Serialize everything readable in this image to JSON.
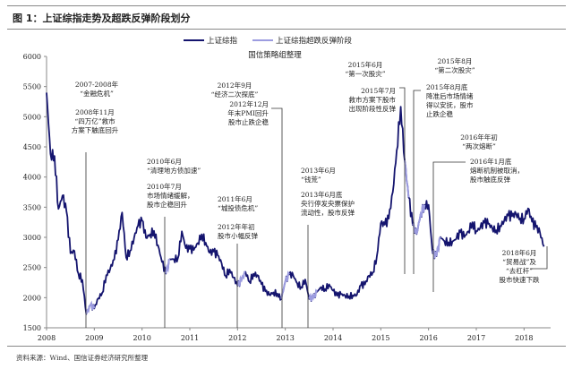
{
  "title": "图 1：上证综指走势及超跌反弹阶段划分",
  "source": "资料来源：Wind、国信证券经济研究所整理",
  "chart_data": {
    "type": "line",
    "subtitle": "国信策略组整理",
    "xlim": [
      "2008-01",
      "2018-06"
    ],
    "ylim": [
      1500,
      6000
    ],
    "x_ticks": [
      "2008",
      "2009",
      "2010",
      "2011",
      "2012",
      "2013",
      "2014",
      "2015",
      "2016",
      "2017",
      "2018"
    ],
    "y_ticks": [
      1500,
      2000,
      2500,
      3000,
      3500,
      4000,
      4500,
      5000,
      5500,
      6000
    ],
    "legend": {
      "placement": "top-center",
      "entries": [
        "上证综指",
        "上证综指超跌反弹阶段"
      ]
    },
    "colors": {
      "index": "#14146e",
      "rebound": "#9c9ce0"
    },
    "grid": false,
    "series": [
      {
        "name": "上证综指",
        "points": [
          [
            "2008-01",
            5400
          ],
          [
            "2008-02",
            4383
          ],
          [
            "2008-03",
            4348
          ],
          [
            "2008-04",
            3472
          ],
          [
            "2008-05",
            3693
          ],
          [
            "2008-06",
            3433
          ],
          [
            "2008-07",
            2736
          ],
          [
            "2008-08",
            2775
          ],
          [
            "2008-09",
            2397
          ],
          [
            "2008-10",
            2293
          ],
          [
            "2008-11",
            1728
          ],
          [
            "2008-12",
            1871
          ],
          [
            "2009-01",
            1821
          ],
          [
            "2009-02",
            1990
          ],
          [
            "2009-03",
            2082
          ],
          [
            "2009-04",
            2373
          ],
          [
            "2009-05",
            2477
          ],
          [
            "2009-06",
            2632
          ],
          [
            "2009-07",
            2959
          ],
          [
            "2009-08",
            3412
          ],
          [
            "2009-09",
            2667
          ],
          [
            "2009-10",
            2779
          ],
          [
            "2009-11",
            2995
          ],
          [
            "2009-12",
            3195
          ],
          [
            "2010-01",
            3277
          ],
          [
            "2010-02",
            2989
          ],
          [
            "2010-03",
            3051
          ],
          [
            "2010-04",
            3109
          ],
          [
            "2010-05",
            2870
          ],
          [
            "2010-06",
            2592
          ],
          [
            "2010-07",
            2398
          ],
          [
            "2010-08",
            2637
          ],
          [
            "2010-09",
            2638
          ],
          [
            "2010-10",
            2655
          ],
          [
            "2010-11",
            3100
          ],
          [
            "2010-12",
            2820
          ],
          [
            "2011-01",
            2808
          ],
          [
            "2011-02",
            2790
          ],
          [
            "2011-03",
            2905
          ],
          [
            "2011-04",
            3050
          ],
          [
            "2011-05",
            2911
          ],
          [
            "2011-06",
            2743
          ],
          [
            "2011-07",
            2762
          ],
          [
            "2011-08",
            2701
          ],
          [
            "2011-09",
            2568
          ],
          [
            "2011-10",
            2359
          ],
          [
            "2011-11",
            2469
          ],
          [
            "2011-12",
            2333
          ],
          [
            "2012-01",
            2199
          ],
          [
            "2012-02",
            2292
          ],
          [
            "2012-03",
            2428
          ],
          [
            "2012-04",
            2262
          ],
          [
            "2012-05",
            2396
          ],
          [
            "2012-06",
            2373
          ],
          [
            "2012-07",
            2225
          ],
          [
            "2012-08",
            2103
          ],
          [
            "2012-09",
            2047
          ],
          [
            "2012-10",
            2086
          ],
          [
            "2012-11",
            2068
          ],
          [
            "2012-12",
            1980
          ],
          [
            "2013-01",
            2269
          ],
          [
            "2013-02",
            2385
          ],
          [
            "2013-03",
            2365
          ],
          [
            "2013-04",
            2236
          ],
          [
            "2013-05",
            2177
          ],
          [
            "2013-06",
            2300
          ],
          [
            "2013-07",
            1979
          ],
          [
            "2013-08",
            1994
          ],
          [
            "2013-09",
            2098
          ],
          [
            "2013-10",
            2175
          ],
          [
            "2013-11",
            2141
          ],
          [
            "2013-12",
            2220
          ],
          [
            "2014-01",
            2116
          ],
          [
            "2014-02",
            2033
          ],
          [
            "2014-03",
            2056
          ],
          [
            "2014-04",
            2033
          ],
          [
            "2014-05",
            2026
          ],
          [
            "2014-06",
            2039
          ],
          [
            "2014-07",
            2048
          ],
          [
            "2014-08",
            2202
          ],
          [
            "2014-09",
            2217
          ],
          [
            "2014-10",
            2364
          ],
          [
            "2014-11",
            2420
          ],
          [
            "2014-12",
            2683
          ],
          [
            "2015-01",
            3235
          ],
          [
            "2015-02",
            3210
          ],
          [
            "2015-03",
            3310
          ],
          [
            "2015-04",
            3748
          ],
          [
            "2015-05",
            4442
          ],
          [
            "2015-06",
            5166
          ],
          [
            "2015-07",
            4277
          ],
          [
            "2015-08",
            3664
          ],
          [
            "2015-09",
            3206
          ],
          [
            "2015-10",
            3053
          ],
          [
            "2015-11",
            3383
          ],
          [
            "2015-12",
            3539
          ],
          [
            "2016-01",
            3539
          ],
          [
            "2016-02",
            2738
          ],
          [
            "2016-03",
            2688
          ],
          [
            "2016-04",
            3004
          ],
          [
            "2016-05",
            2938
          ],
          [
            "2016-06",
            2917
          ],
          [
            "2016-07",
            2930
          ],
          [
            "2016-08",
            2979
          ],
          [
            "2016-09",
            3085
          ],
          [
            "2016-10",
            3005
          ],
          [
            "2016-11",
            3100
          ],
          [
            "2016-12",
            3250
          ],
          [
            "2017-01",
            3104
          ],
          [
            "2017-02",
            3159
          ],
          [
            "2017-03",
            3242
          ],
          [
            "2017-04",
            3223
          ],
          [
            "2017-05",
            3155
          ],
          [
            "2017-06",
            3117
          ],
          [
            "2017-07",
            3192
          ],
          [
            "2017-08",
            3273
          ],
          [
            "2017-09",
            3361
          ],
          [
            "2017-10",
            3349
          ],
          [
            "2017-11",
            3393
          ],
          [
            "2017-12",
            3317
          ],
          [
            "2018-01",
            3307
          ],
          [
            "2018-02",
            3480
          ],
          [
            "2018-03",
            3259
          ],
          [
            "2018-04",
            3169
          ],
          [
            "2018-05",
            3082
          ],
          [
            "2018-06",
            2847
          ]
        ]
      },
      {
        "name": "上证综指超跌反弹阶段",
        "ranges": [
          [
            "2008-11",
            "2009-01"
          ],
          [
            "2010-07",
            "2010-08"
          ],
          [
            "2012-01",
            "2012-03"
          ],
          [
            "2012-12",
            "2013-02"
          ],
          [
            "2013-07",
            "2013-09"
          ],
          [
            "2015-07",
            "2015-08"
          ],
          [
            "2015-09",
            "2015-12"
          ],
          [
            "2016-02",
            "2016-04"
          ]
        ]
      }
    ],
    "annotations": [
      [
        "2007-2008年",
        "“金融危机”"
      ],
      [
        "2008年11月",
        "“四万亿”救市",
        "方案下触底回升"
      ],
      [
        "2012年9月",
        "“经济二次探底”"
      ],
      [
        "2012年12月",
        "年末PMI回升",
        "股市止跌企稳"
      ],
      [
        "2010年6月",
        "“清理地方债加速”"
      ],
      [
        "2010年7月",
        "市场情绪缓解，",
        "股市企稳回升"
      ],
      [
        "2011年6月",
        "“城投债危机”"
      ],
      [
        "2012年年初",
        "股市小幅反弹"
      ],
      [
        "2015年6月",
        "“第一次股灾”"
      ],
      [
        "2015年7月",
        "救市方案下股市",
        "出现阶段性反弹"
      ],
      [
        "2015年8月",
        "“第二次股灾”"
      ],
      [
        "2015年8月底",
        "降准后市场情绪",
        "得以安抚，股市",
        "止跌企稳"
      ],
      [
        "2016年年初",
        "“两次熔断”"
      ],
      [
        "2016年1月底",
        "熔断机制被取消，",
        "股市触底反弹"
      ],
      [
        "2013年6月",
        "“钱荒”"
      ],
      [
        "2013年6月底",
        "央行停发央票保护",
        "流动性，股市反弹"
      ],
      [
        "2018年6月",
        "“贸易战”及",
        "“去杠杆”",
        "股市快速下跌"
      ]
    ]
  }
}
